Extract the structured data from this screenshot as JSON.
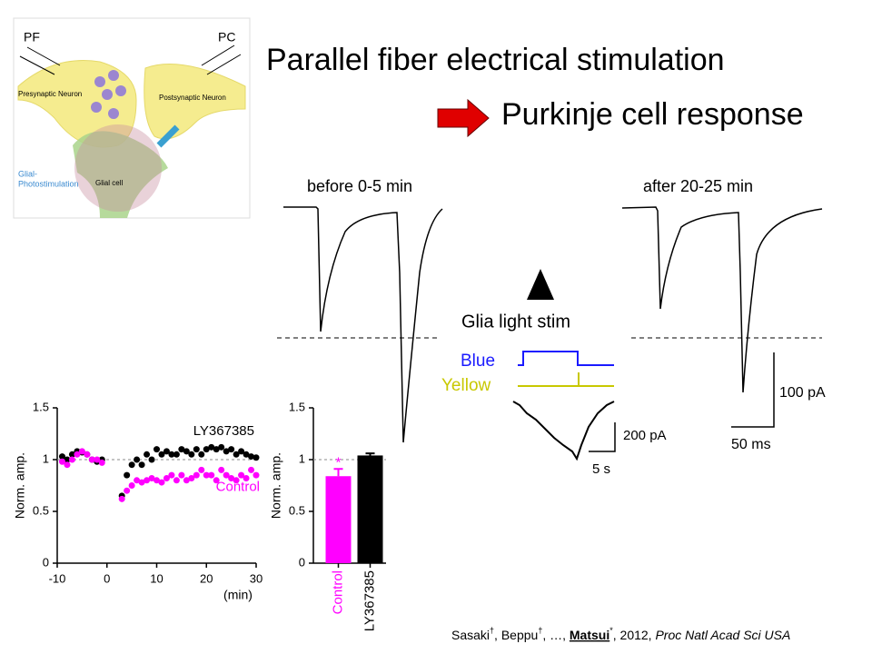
{
  "title": "Parallel fiber electrical stimulation",
  "subtitle": "Purkinje cell response",
  "diagram": {
    "labels": [
      "PF",
      "PC",
      "Presynaptic Neuron",
      "Postsynaptic Neuron",
      "Glial cell",
      "Glial-",
      "Photostimulation"
    ]
  },
  "traces": {
    "before": "before 0-5 min",
    "after": "after 20-25 min",
    "stim": "Glia light stim",
    "blue": "Blue",
    "yellow": "Yellow",
    "scale_current_1": "100 pA",
    "scale_time_1": "50 ms",
    "scale_current_2": "200 pA",
    "scale_time_2": "5 s"
  },
  "citation": [
    "Sasaki",
    "†",
    ", Beppu",
    "†",
    ", …, ",
    "Matsui",
    "*",
    ", 2012, ",
    "Proc Natl Acad Sci USA"
  ],
  "chart_data": [
    {
      "type": "scatter",
      "y_label": "Norm. amp.",
      "x_label": "(min)",
      "xlim": [
        -10,
        30
      ],
      "xticks": [
        -10,
        0,
        10,
        20,
        30
      ],
      "ylim": [
        0,
        1.5
      ],
      "yticks": [
        0,
        0.5,
        1,
        1.5
      ],
      "hline": 1,
      "x": [
        -9,
        -8,
        -7,
        -6,
        -5,
        -4,
        -3,
        -2,
        -1,
        3,
        4,
        5,
        6,
        7,
        8,
        9,
        10,
        11,
        12,
        13,
        14,
        15,
        16,
        17,
        18,
        19,
        20,
        21,
        22,
        23,
        24,
        25,
        26,
        27,
        28,
        29,
        30
      ],
      "series": [
        {
          "name": "LY367385",
          "color": "#000000",
          "values": [
            1.03,
            1.0,
            1.05,
            1.08,
            1.07,
            1.05,
            1.0,
            0.98,
            1.0,
            0.65,
            0.85,
            0.95,
            1.0,
            0.95,
            1.05,
            1.0,
            1.1,
            1.05,
            1.08,
            1.05,
            1.05,
            1.1,
            1.08,
            1.05,
            1.1,
            1.05,
            1.1,
            1.12,
            1.1,
            1.12,
            1.08,
            1.1,
            1.05,
            1.08,
            1.05,
            1.03,
            1.02
          ]
        },
        {
          "name": "Control",
          "color": "#ff00ff",
          "values": [
            0.98,
            0.95,
            1.0,
            1.05,
            1.08,
            1.05,
            1.0,
            1.0,
            0.97,
            0.62,
            0.7,
            0.75,
            0.8,
            0.78,
            0.8,
            0.82,
            0.8,
            0.78,
            0.82,
            0.85,
            0.8,
            0.85,
            0.8,
            0.82,
            0.85,
            0.9,
            0.85,
            0.85,
            0.8,
            0.9,
            0.85,
            0.82,
            0.8,
            0.85,
            0.82,
            0.9,
            0.85
          ]
        }
      ]
    },
    {
      "type": "bar",
      "y_label": "Norm. amp.",
      "ylim": [
        0,
        1.5
      ],
      "yticks": [
        0,
        0.5,
        1,
        1.5
      ],
      "hline": 1,
      "categories": [
        "Control",
        "LY367385"
      ],
      "values": [
        0.84,
        1.04
      ],
      "errors": [
        0.07,
        0.02
      ],
      "colors": [
        "#ff00ff",
        "#000000"
      ],
      "annotation": "*"
    }
  ]
}
